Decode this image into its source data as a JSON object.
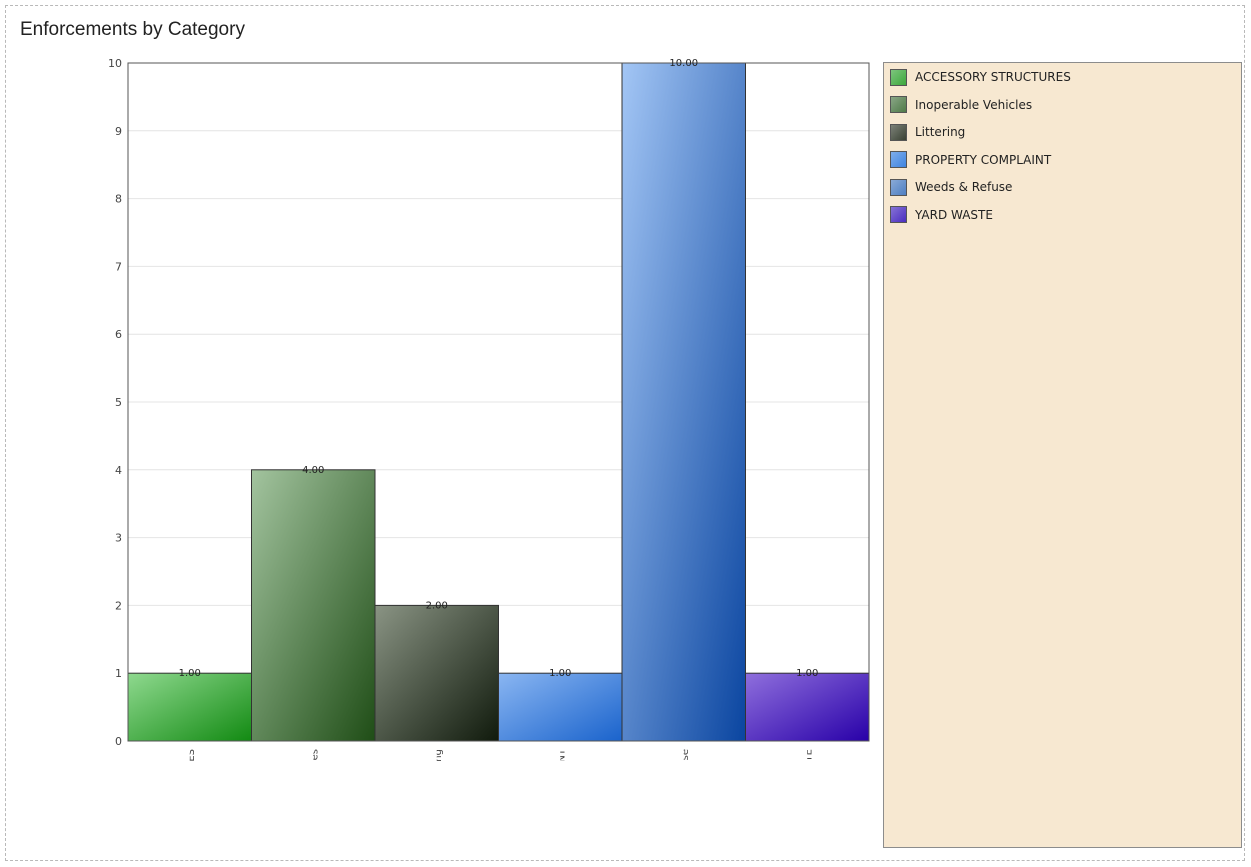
{
  "panel": {
    "title": "Enforcements by Category"
  },
  "chart_data": {
    "type": "bar",
    "title": "Enforcements by Category",
    "categories": [
      "ACCESSORY STRUCTURES",
      "Inoperable Vehicles",
      "Littering",
      "PROPERTY COMPLAINT",
      "Weeds & Refuse",
      "YARD WASTE"
    ],
    "axis_category_labels": [
      "ORY STRUCTURES",
      "ıoperable Vehicles",
      "Littering",
      "ERTY COMPLAINT",
      "Weeds & Refuse",
      "YARD WASTE"
    ],
    "values": [
      1,
      4,
      2,
      1,
      10,
      1
    ],
    "data_labels": [
      "1.00",
      "4.00",
      "2.00",
      "1.00",
      "10.00",
      "1.00"
    ],
    "y_ticks": [
      "0",
      "1",
      "2",
      "3",
      "4",
      "5",
      "6",
      "7",
      "8",
      "9",
      "10"
    ],
    "ylim": [
      0,
      10
    ],
    "xlabel": "",
    "ylabel": "",
    "grid": true,
    "legend_position": "right",
    "colors": [
      {
        "light": "#8fd98f",
        "dark": "#128a12"
      },
      {
        "light": "#a3c49f",
        "dark": "#1f4d16"
      },
      {
        "light": "#8a9484",
        "dark": "#101a0c"
      },
      {
        "light": "#8ab6f2",
        "dark": "#1a63cc"
      },
      {
        "light": "#a3c6f5",
        "dark": "#0a45a0"
      },
      {
        "light": "#8f6fdd",
        "dark": "#2800a8"
      }
    ]
  },
  "legend": {
    "items": [
      {
        "label": "ACCESSORY STRUCTURES",
        "color": "#3da83d"
      },
      {
        "label": "Inoperable Vehicles",
        "color": "#4f7a49"
      },
      {
        "label": "Littering",
        "color": "#3a4234"
      },
      {
        "label": "PROPERTY COMPLAINT",
        "color": "#3f84e0"
      },
      {
        "label": "Weeds & Refuse",
        "color": "#4f7fc2"
      },
      {
        "label": "YARD WASTE",
        "color": "#4a2dc0"
      }
    ]
  }
}
